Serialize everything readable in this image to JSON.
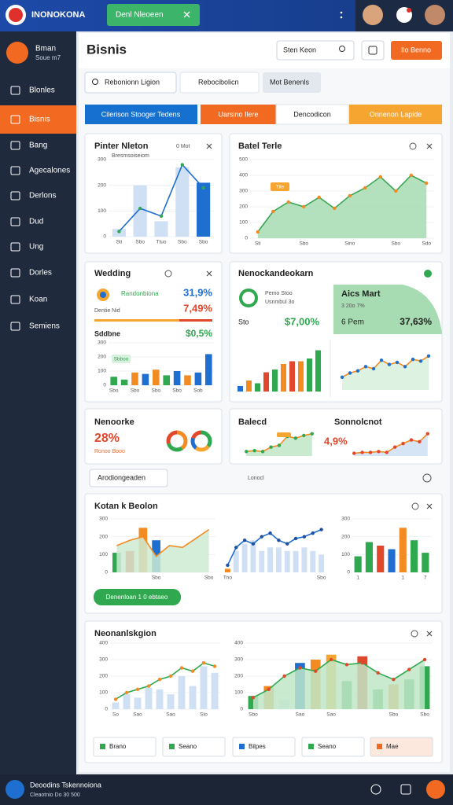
{
  "app": {
    "brand": "INONOKONA",
    "notice": "Denl Nleoeen"
  },
  "sidebar": {
    "user_name": "Bman",
    "user_sub": "Soue m7",
    "items": [
      "Blonles",
      "Bisnis",
      "Bang",
      "Agecalones",
      "Derlons",
      "Dud",
      "Ung",
      "Dorles",
      "Koan",
      "Semiens"
    ],
    "footer_title": "Deoodins Tskennoiona",
    "footer_sub": "Cleaotnio Do 30 500"
  },
  "header": {
    "title": "Bisnis",
    "search": "Sten Keon",
    "action": "Ilo Benno"
  },
  "tabs": [
    "Rebonionn Ligion",
    "Rebocibolicn",
    "Mot Benenls"
  ],
  "filters": [
    "Cilerison Stooger Tedens",
    "Uarsino Ilere",
    "Dencodicon",
    "Onnenon Lapide"
  ],
  "cards": {
    "pinter": {
      "note": "0 Mot"
    },
    "wedding": {
      "title": "Wedding",
      "stat1_label": "Randonbiona",
      "stat1_value": "31,9%",
      "stat2_label": "Dentie Nid",
      "stat2_value": "7,49%"
    },
    "market": {
      "title": "Nenockandeokarn",
      "line1": "Pemo Stoo",
      "line2": "Usnmbul 3o",
      "left_label": "Sto",
      "left_value": "$7,00%",
      "panel_title": "Aics Mart",
      "panel_sub": "3 20o 7%",
      "panel_label": "6 Pem",
      "panel_value": "37,63%"
    },
    "network": {
      "title": "Nenoorke",
      "value": "28%",
      "sub": "Ronoo Booo"
    },
    "koten": {
      "title": "Kotan k Beolon",
      "button": "Denenloan 1 0 ebtaeo"
    },
    "region": {
      "title": "Neonanlskgion",
      "buttons": [
        "Brano",
        "Seano",
        "Bilpes",
        "Seano",
        "Mae"
      ]
    }
  },
  "toolbar": {
    "button": "Arodiongeaden",
    "label": "Lonocl"
  },
  "chart_data": [
    {
      "type": "combo",
      "title": "Pinter Nleton",
      "subtitle": "Bresmsoiseiom",
      "categories": [
        "Sti",
        "Sbo",
        "Ttuo",
        "Sbo",
        "Sbo"
      ],
      "ylim": [
        0,
        300
      ],
      "yticks": [
        0,
        100,
        200,
        300
      ],
      "grid": true,
      "series": [
        {
          "type": "bar",
          "color": "#cfe0f5",
          "colors": [
            "#cfe0f5",
            "#cfe0f5",
            "#cfe0f5",
            "#cfe0f5",
            "#1f6fd1"
          ],
          "values": [
            30,
            200,
            60,
            270,
            210
          ]
        },
        {
          "type": "line",
          "color": "#1f6fd1",
          "marker_color": "#2fa84f",
          "markers": true,
          "values": [
            20,
            110,
            80,
            280,
            190
          ]
        }
      ]
    },
    {
      "type": "area",
      "title": "Batel Terle",
      "annotation": "Tile",
      "categories": [
        "Sti",
        null,
        null,
        "Sbo",
        null,
        null,
        "Sino",
        null,
        null,
        "Sbo",
        null,
        "Sdo"
      ],
      "ylim": [
        0,
        500
      ],
      "yticks": [
        0,
        100,
        200,
        300,
        400,
        500
      ],
      "grid": true,
      "series": [
        {
          "type": "area",
          "color": "#3aa655",
          "fill": "#a7dcb2",
          "marker_color": "#f28b22",
          "markers": true,
          "values": [
            40,
            170,
            230,
            200,
            260,
            190,
            270,
            320,
            390,
            300,
            400,
            350
          ]
        }
      ]
    },
    {
      "type": "bar",
      "title": "Sddbne",
      "highlight": "$0,5%",
      "annotation": "Sbboo",
      "categories": [
        "Sbo",
        null,
        "Sbo",
        null,
        "Sbo",
        null,
        "Sbo",
        null,
        "Sob",
        null
      ],
      "ylim": [
        0,
        300
      ],
      "yticks": [
        0,
        100,
        200,
        300
      ],
      "grid": true,
      "series": [
        {
          "type": "bar",
          "color": "#2fa84f",
          "colors": [
            "#2fa84f",
            "#2fa84f",
            "#f28b22",
            "#1f6fd1",
            "#f28b22",
            "#2fa84f",
            "#1f6fd1",
            "#f28b22",
            "#1f6fd1",
            "#1f6fd1"
          ],
          "values": [
            60,
            40,
            90,
            80,
            110,
            70,
            100,
            70,
            90,
            220
          ]
        }
      ]
    },
    {
      "type": "bar",
      "ylim": [
        0,
        80
      ],
      "series": [
        {
          "type": "bar",
          "color": "#2fa84f",
          "colors": [
            "#1f6fd1",
            "#f28b22",
            "#2fa84f",
            "#e0472b",
            "#2fa84f",
            "#f28b22",
            "#e0472b",
            "#f28b22",
            "#2fa84f",
            "#2fa84f"
          ],
          "values": [
            10,
            20,
            15,
            35,
            40,
            50,
            55,
            55,
            60,
            75
          ]
        }
      ]
    },
    {
      "type": "area",
      "ylim": [
        0,
        100
      ],
      "series": [
        {
          "type": "area",
          "color": "#f28b22",
          "fill": "#d8f0dd",
          "marker_color": "#1f6fd1",
          "markers": true,
          "values": [
            30,
            40,
            45,
            55,
            50,
            70,
            60,
            65,
            55,
            72,
            68,
            80
          ]
        }
      ]
    },
    {
      "type": "donut",
      "colors": [
        "#f28b22",
        "#2fa84f",
        "#e0472b"
      ],
      "values": [
        40,
        30,
        30
      ]
    },
    {
      "type": "donut",
      "colors": [
        "#2fa84f",
        "#f7a531",
        "#1f6fd1",
        "#e0472b"
      ],
      "values": [
        35,
        25,
        20,
        20
      ]
    },
    {
      "type": "area",
      "title": "Balecd",
      "ylim": [
        0,
        30
      ],
      "series": [
        {
          "type": "area",
          "color": "#f28b22",
          "fill": "#bfe6c7",
          "marker_color": "#2fa84f",
          "markers": true,
          "values": [
            5,
            6,
            5,
            10,
            12,
            22,
            20,
            23,
            25
          ]
        }
      ]
    },
    {
      "type": "area",
      "title": "Sonnolcnot",
      "highlight": "4,9%",
      "ylim": [
        0,
        30
      ],
      "series": [
        {
          "type": "area",
          "color": "#f28b22",
          "fill": "#cfe0f5",
          "marker_color": "#e0472b",
          "markers": true,
          "values": [
            3,
            4,
            4,
            5,
            4,
            10,
            14,
            18,
            16,
            25
          ]
        }
      ]
    },
    {
      "type": "combo",
      "categories": [
        null,
        null,
        null,
        "Sbo",
        null,
        null,
        null,
        "Sbo"
      ],
      "ylim": [
        0,
        300
      ],
      "yticks": [
        0,
        100,
        200,
        300
      ],
      "grid": true,
      "series": [
        {
          "type": "bar",
          "color": "#2fa84f",
          "colors": [
            "#2fa84f",
            "#e0472b",
            "#f28b22",
            "#1f6fd1",
            "#2fa84f",
            "#2fa84f",
            "#2fa84f",
            "#2fa84f"
          ],
          "values": [
            110,
            120,
            250,
            180,
            null,
            null,
            null,
            null
          ]
        },
        {
          "type": "area",
          "color": "#f28b22",
          "fill": "#cdebd3",
          "values": [
            150,
            180,
            200,
            90,
            150,
            140,
            190,
            240
          ]
        }
      ]
    },
    {
      "type": "combo",
      "categories": [
        "Tno",
        null,
        null,
        null,
        null,
        null,
        null,
        null,
        null,
        null,
        null,
        "Sbo"
      ],
      "ylim": [
        0,
        150
      ],
      "series": [
        {
          "type": "bar",
          "color": "#cfe0f5",
          "colors": [
            "#f28b22",
            "#cfe0f5",
            "#cfe0f5",
            "#cfe0f5",
            "#cfe0f5",
            "#cfe0f5",
            "#cfe0f5",
            "#cfe0f5",
            "#cfe0f5",
            "#cfe0f5",
            "#cfe0f5",
            "#cfe0f5"
          ],
          "values": [
            10,
            60,
            80,
            90,
            60,
            70,
            70,
            60,
            60,
            70,
            60,
            50
          ]
        },
        {
          "type": "line",
          "color": "#1f6fd1",
          "marker_color": "#1f4fa0",
          "markers": true,
          "values": [
            20,
            70,
            90,
            80,
            100,
            110,
            90,
            80,
            95,
            100,
            110,
            120
          ]
        }
      ]
    },
    {
      "type": "bar",
      "categories": [
        "1",
        null,
        null,
        null,
        "1",
        null,
        "7"
      ],
      "ylim": [
        0,
        300
      ],
      "yticks": [
        0,
        100,
        200,
        300
      ],
      "grid": true,
      "series": [
        {
          "type": "bar",
          "color": "#2fa84f",
          "colors": [
            "#2fa84f",
            "#2fa84f",
            "#e0472b",
            "#1f6fd1",
            "#f28b22",
            "#2fa84f",
            "#2fa84f"
          ],
          "values": [
            90,
            170,
            150,
            130,
            250,
            180,
            110
          ]
        }
      ]
    },
    {
      "type": "combo",
      "categories": [
        "So",
        null,
        "Sao",
        null,
        null,
        "Sao",
        null,
        null,
        "Sto",
        null
      ],
      "ylim": [
        0,
        400
      ],
      "yticks": [
        0,
        100,
        200,
        300,
        400
      ],
      "grid": true,
      "series": [
        {
          "type": "bar",
          "color": "#cfe0f5",
          "values": [
            40,
            90,
            70,
            130,
            120,
            90,
            200,
            140,
            260,
            220
          ]
        },
        {
          "type": "line",
          "color": "#2fa84f",
          "marker_color": "#f28b22",
          "markers": true,
          "values": [
            60,
            100,
            120,
            140,
            180,
            200,
            250,
            230,
            280,
            260
          ]
        }
      ]
    },
    {
      "type": "combo",
      "categories": [
        "Sbo",
        null,
        null,
        "Sao",
        null,
        "Sao",
        null,
        null,
        null,
        "Sbo",
        null,
        "Sbo"
      ],
      "ylim": [
        0,
        400
      ],
      "yticks": [
        0,
        100,
        200,
        300,
        400
      ],
      "grid": true,
      "series": [
        {
          "type": "bar",
          "color": "#2fa84f",
          "colors": [
            "#2fa84f",
            "#f28b22",
            "#cfe0f5",
            "#1f6fd1",
            "#f28b22",
            "#f7a531",
            "#2fa84f",
            "#e0472b",
            "#2fa84f",
            "#f28b22",
            "#2fa84f",
            "#2fa84f"
          ],
          "values": [
            80,
            140,
            60,
            280,
            300,
            330,
            170,
            320,
            120,
            150,
            180,
            260
          ]
        },
        {
          "type": "area",
          "color": "#2fa84f",
          "fill": "#bfe6c7",
          "marker_color": "#e0472b",
          "markers": true,
          "values": [
            70,
            120,
            200,
            250,
            230,
            300,
            270,
            280,
            220,
            180,
            240,
            300
          ]
        }
      ]
    }
  ]
}
